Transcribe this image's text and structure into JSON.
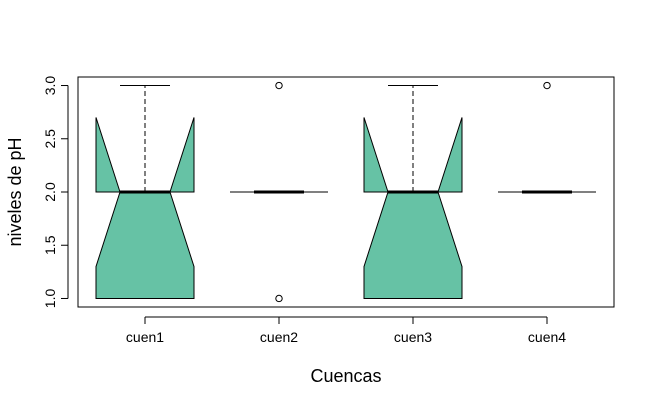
{
  "chart_data": {
    "type": "boxplot",
    "notched": true,
    "title": "",
    "xlabel": "Cuencas",
    "ylabel": "niveles de pH",
    "categories": [
      "cuen1",
      "cuen2",
      "cuen3",
      "cuen4"
    ],
    "ylim": [
      0.92,
      3.08
    ],
    "yticks": [
      1.0,
      1.5,
      2.0,
      2.5,
      3.0
    ],
    "ytick_labels": [
      "1.0",
      "1.5",
      "2.0",
      "2.5",
      "3.0"
    ],
    "fill_color": "#66C2A5",
    "boxes": [
      {
        "name": "cuen1",
        "whisker_low": 1.0,
        "q1": 1.0,
        "median": 2.0,
        "q3": 2.0,
        "whisker_high": 3.0,
        "notch_low": 1.3,
        "notch_high": 2.7,
        "outliers": []
      },
      {
        "name": "cuen2",
        "whisker_low": 2.0,
        "q1": 2.0,
        "median": 2.0,
        "q3": 2.0,
        "whisker_high": 2.0,
        "notch_low": 2.0,
        "notch_high": 2.0,
        "outliers": [
          1.0,
          3.0
        ]
      },
      {
        "name": "cuen3",
        "whisker_low": 1.0,
        "q1": 1.0,
        "median": 2.0,
        "q3": 2.0,
        "whisker_high": 3.0,
        "notch_low": 1.3,
        "notch_high": 2.7,
        "outliers": []
      },
      {
        "name": "cuen4",
        "whisker_low": 2.0,
        "q1": 2.0,
        "median": 2.0,
        "q3": 2.0,
        "whisker_high": 2.0,
        "notch_low": 2.0,
        "notch_high": 2.0,
        "outliers": [
          3.0
        ]
      }
    ]
  }
}
